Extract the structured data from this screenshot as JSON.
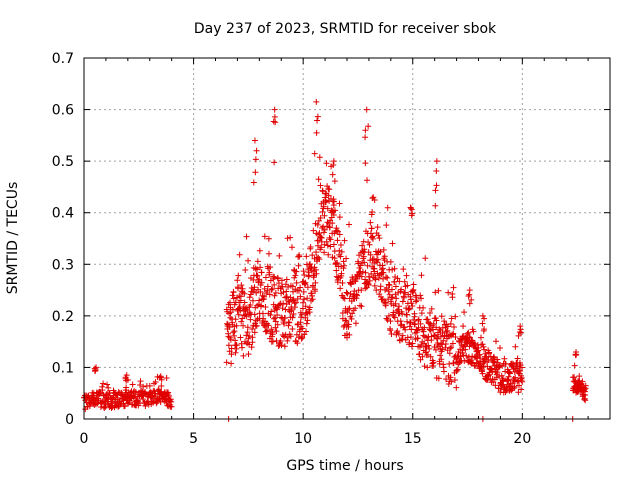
{
  "chart_data": {
    "type": "scatter",
    "title": "Day 237 of 2023, SRMTID for receiver sbok",
    "xlabel": "GPS time / hours",
    "ylabel": "SRMTID / TECUs",
    "xlim": [
      0,
      24
    ],
    "ylim": [
      0,
      0.7
    ],
    "xticks": [
      "0",
      "5",
      "10",
      "15",
      "20"
    ],
    "yticks": [
      "0",
      "0.1",
      "0.2",
      "0.3",
      "0.4",
      "0.5",
      "0.6",
      "0.7"
    ],
    "grid": true,
    "marker": "+",
    "color": "#e00000",
    "series": [
      {
        "name": "SRMTID",
        "segments": [
          {
            "x_start": 0.0,
            "x_end": 4.0,
            "points": 260,
            "profile": [
              [
                0.0,
                0.03
              ],
              [
                0.5,
                0.04
              ],
              [
                1.0,
                0.035
              ],
              [
                2.0,
                0.04
              ],
              [
                3.0,
                0.04
              ],
              [
                3.5,
                0.045
              ],
              [
                4.0,
                0.035
              ]
            ],
            "spread": 0.015,
            "peaks": [
              [
                0.55,
                0.1
              ],
              [
                1.95,
                0.085
              ],
              [
                3.5,
                0.083
              ]
            ]
          },
          {
            "x_start": 6.5,
            "x_end": 12.0,
            "points": 520,
            "profile": [
              [
                6.5,
                0.15
              ],
              [
                7.0,
                0.2
              ],
              [
                7.5,
                0.18
              ],
              [
                8.0,
                0.25
              ],
              [
                8.5,
                0.22
              ],
              [
                9.0,
                0.2
              ],
              [
                9.5,
                0.23
              ],
              [
                10.0,
                0.2
              ],
              [
                10.5,
                0.3
              ],
              [
                11.0,
                0.4
              ],
              [
                11.5,
                0.35
              ],
              [
                12.0,
                0.2
              ]
            ],
            "spread": 0.07,
            "peaks": [
              [
                7.8,
                0.54
              ],
              [
                8.7,
                0.6
              ],
              [
                10.6,
                0.615
              ],
              [
                11.4,
                0.5
              ]
            ]
          },
          {
            "x_start": 12.0,
            "x_end": 17.0,
            "points": 420,
            "profile": [
              [
                12.0,
                0.2
              ],
              [
                12.5,
                0.25
              ],
              [
                13.0,
                0.32
              ],
              [
                13.5,
                0.3
              ],
              [
                14.0,
                0.22
              ],
              [
                15.0,
                0.2
              ],
              [
                15.5,
                0.16
              ],
              [
                16.0,
                0.14
              ],
              [
                16.5,
                0.13
              ],
              [
                17.0,
                0.12
              ]
            ],
            "spread": 0.06,
            "peaks": [
              [
                12.9,
                0.6
              ],
              [
                13.2,
                0.43
              ],
              [
                14.9,
                0.41
              ],
              [
                16.1,
                0.5
              ]
            ]
          },
          {
            "x_start": 17.0,
            "x_end": 20.0,
            "points": 260,
            "profile": [
              [
                17.0,
                0.12
              ],
              [
                17.5,
                0.14
              ],
              [
                18.0,
                0.12
              ],
              [
                18.5,
                0.1
              ],
              [
                19.0,
                0.08
              ],
              [
                19.5,
                0.08
              ],
              [
                20.0,
                0.08
              ]
            ],
            "spread": 0.03,
            "peaks": [
              [
                17.6,
                0.25
              ],
              [
                18.2,
                0.2
              ],
              [
                19.9,
                0.18
              ]
            ]
          },
          {
            "x_start": 22.3,
            "x_end": 22.9,
            "points": 60,
            "profile": [
              [
                22.3,
                0.07
              ],
              [
                22.6,
                0.06
              ],
              [
                22.9,
                0.05
              ]
            ],
            "spread": 0.015,
            "peaks": [
              [
                22.45,
                0.13
              ]
            ]
          },
          {
            "x_start": 6.6,
            "x_end": 6.6,
            "points": 1,
            "profile": [
              [
                6.6,
                0.0
              ]
            ],
            "spread": 0.0,
            "peaks": []
          },
          {
            "x_start": 18.2,
            "x_end": 18.2,
            "points": 1,
            "profile": [
              [
                18.2,
                0.0
              ]
            ],
            "spread": 0.0,
            "peaks": []
          },
          {
            "x_start": 22.3,
            "x_end": 22.3,
            "points": 1,
            "profile": [
              [
                22.3,
                0.0
              ]
            ],
            "spread": 0.0,
            "peaks": []
          }
        ]
      }
    ]
  }
}
